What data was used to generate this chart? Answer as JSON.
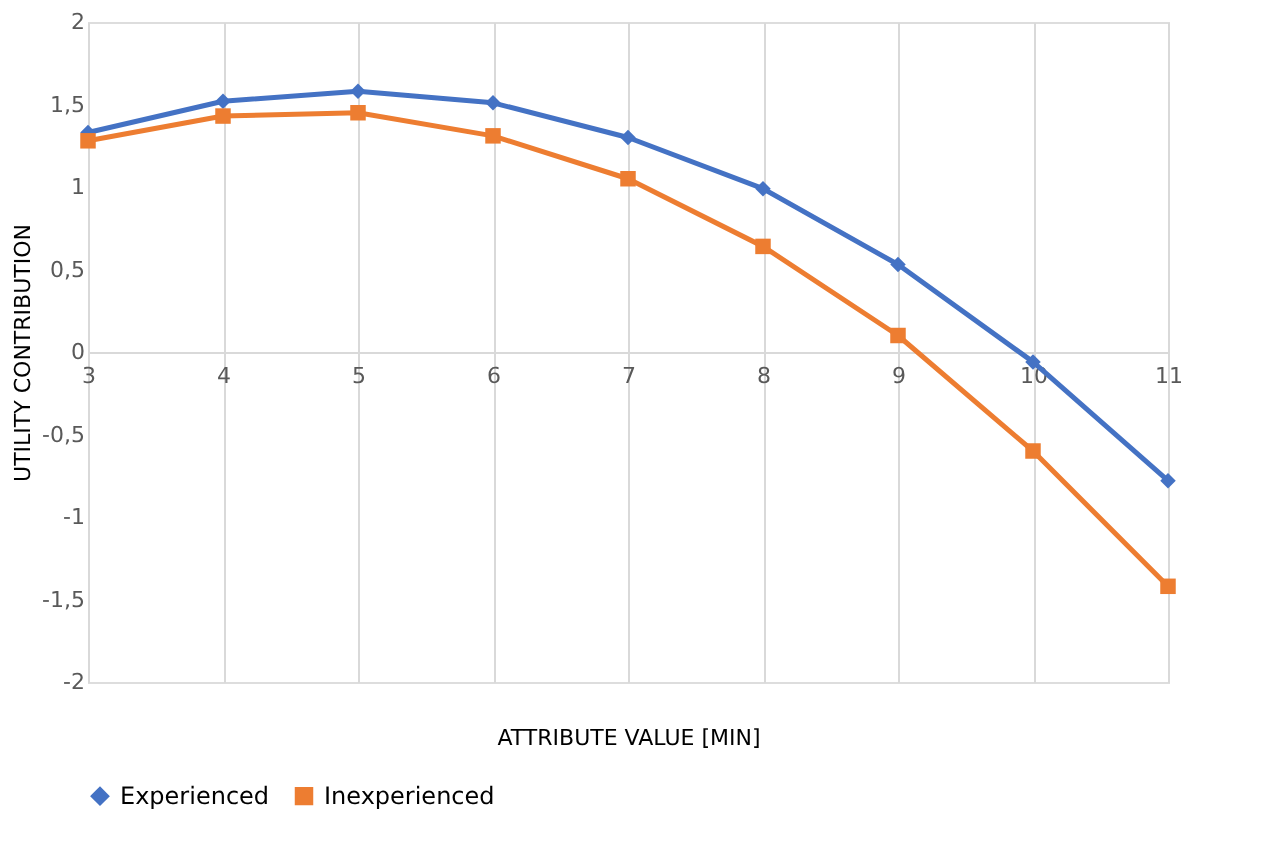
{
  "chart_data": {
    "type": "line",
    "xlabel": "ATTRIBUTE VALUE [MIN]",
    "ylabel": "UTILITY CONTRIBUTION",
    "categories": [
      "3",
      "4",
      "5",
      "6",
      "7",
      "8",
      "9",
      "10",
      "11"
    ],
    "series": [
      {
        "name": "Experienced",
        "color": "#4472c4",
        "marker": "diamond",
        "values": [
          1.33,
          1.52,
          1.58,
          1.51,
          1.3,
          0.99,
          0.53,
          -0.06,
          -0.78
        ]
      },
      {
        "name": "Inexperienced",
        "color": "#ed7d31",
        "marker": "square",
        "values": [
          1.28,
          1.43,
          1.45,
          1.31,
          1.05,
          0.64,
          0.1,
          -0.6,
          -1.42
        ]
      }
    ],
    "ylim": [
      -2,
      2
    ],
    "yticks": [
      {
        "value": -2,
        "label": "-2"
      },
      {
        "value": -1.5,
        "label": "-1,5"
      },
      {
        "value": -1,
        "label": "-1"
      },
      {
        "value": -0.5,
        "label": "-0,5"
      },
      {
        "value": 0,
        "label": "0"
      },
      {
        "value": 0.5,
        "label": "0,5"
      },
      {
        "value": 1,
        "label": "1"
      },
      {
        "value": 1.5,
        "label": "1,5"
      },
      {
        "value": 2,
        "label": "2"
      }
    ],
    "grid": "x",
    "legend": "bottom",
    "line_style": "solid"
  }
}
